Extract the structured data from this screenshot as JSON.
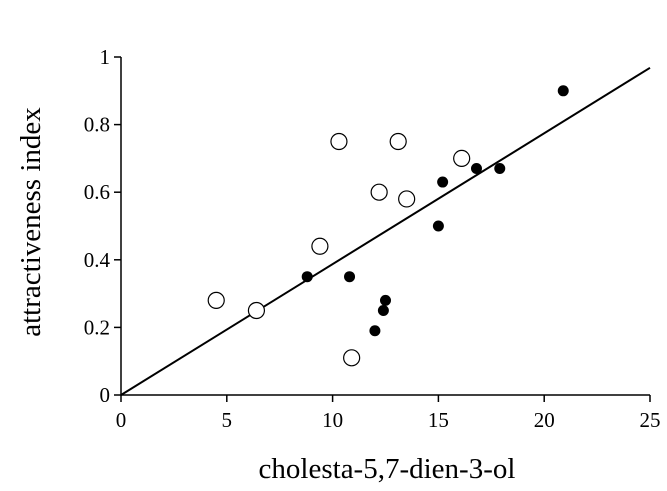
{
  "chart_data": {
    "type": "scatter",
    "xlabel": "cholesta-5,7-dien-3-ol",
    "ylabel": "attractiveness index",
    "xlim": [
      0,
      25
    ],
    "ylim": [
      0,
      1
    ],
    "x_ticks": [
      "0",
      "5",
      "10",
      "15",
      "20",
      "25"
    ],
    "y_ticks": [
      "0",
      "0.2",
      "0.4",
      "0.6",
      "0.8",
      "1"
    ],
    "grid": false,
    "series": [
      {
        "marker": "filled-circle",
        "color": "#000000",
        "points": [
          {
            "x": 8.8,
            "y": 0.35
          },
          {
            "x": 10.8,
            "y": 0.35
          },
          {
            "x": 12.0,
            "y": 0.19
          },
          {
            "x": 12.4,
            "y": 0.25
          },
          {
            "x": 12.5,
            "y": 0.28
          },
          {
            "x": 15.0,
            "y": 0.5
          },
          {
            "x": 15.2,
            "y": 0.63
          },
          {
            "x": 16.8,
            "y": 0.67
          },
          {
            "x": 17.9,
            "y": 0.67
          },
          {
            "x": 20.9,
            "y": 0.9
          }
        ]
      },
      {
        "marker": "open-circle",
        "color": "#000000",
        "points": [
          {
            "x": 4.5,
            "y": 0.28
          },
          {
            "x": 6.4,
            "y": 0.25
          },
          {
            "x": 9.4,
            "y": 0.44
          },
          {
            "x": 10.3,
            "y": 0.75
          },
          {
            "x": 10.9,
            "y": 0.11
          },
          {
            "x": 12.2,
            "y": 0.6
          },
          {
            "x": 13.1,
            "y": 0.75
          },
          {
            "x": 13.5,
            "y": 0.58
          },
          {
            "x": 16.1,
            "y": 0.7
          }
        ]
      }
    ],
    "trendline": {
      "x1": 0,
      "y1": 0,
      "x2": 25,
      "y2": 0.968
    }
  }
}
